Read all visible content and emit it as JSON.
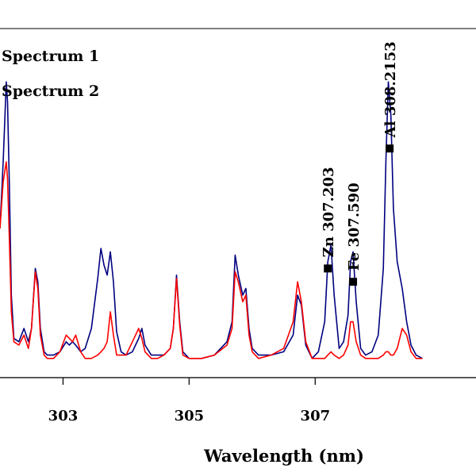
{
  "chart_data": {
    "type": "line",
    "title": "",
    "xlabel": "Wavelength (nm)",
    "ylabel": "",
    "xlim": [
      302.0,
      309.55
    ],
    "ylim": [
      0,
      1.0
    ],
    "xticks": [
      303,
      305,
      307
    ],
    "xtick_labels": [
      "303",
      "305",
      "307"
    ],
    "grid": false,
    "legend_position": "top-left",
    "legend": [
      {
        "name": "Spectrum 1",
        "color": "#000080"
      },
      {
        "name": "Spectrum 2",
        "color": "#ff0000"
      }
    ],
    "annotations": [
      {
        "label": "Zn 307.203",
        "x": 307.2,
        "y": 0.28
      },
      {
        "label": "Fe 307.590",
        "x": 307.6,
        "y": 0.24
      },
      {
        "label": "Al 308.2153",
        "x": 308.18,
        "y": 0.64
      }
    ],
    "series": [
      {
        "name": "Spectrum 1",
        "color": "#000080",
        "x": [
          302.0,
          302.05,
          302.1,
          302.12,
          302.15,
          302.18,
          302.22,
          302.3,
          302.38,
          302.45,
          302.5,
          302.56,
          302.6,
          302.64,
          302.7,
          302.75,
          302.85,
          302.95,
          303.05,
          303.1,
          303.15,
          303.2,
          303.28,
          303.35,
          303.45,
          303.55,
          303.6,
          303.65,
          303.7,
          303.75,
          303.8,
          303.85,
          303.92,
          304.0,
          304.1,
          304.2,
          304.25,
          304.3,
          304.4,
          304.5,
          304.6,
          304.7,
          304.75,
          304.8,
          304.85,
          304.9,
          305.0,
          305.2,
          305.4,
          305.6,
          305.68,
          305.73,
          305.78,
          305.85,
          305.9,
          305.95,
          306.0,
          306.1,
          306.3,
          306.5,
          306.65,
          306.72,
          306.78,
          306.85,
          306.95,
          307.05,
          307.15,
          307.2,
          307.25,
          307.3,
          307.38,
          307.45,
          307.52,
          307.56,
          307.6,
          307.65,
          307.72,
          307.8,
          307.9,
          308.0,
          308.08,
          308.12,
          308.16,
          308.2,
          308.24,
          308.3,
          308.38,
          308.45,
          308.52,
          308.6,
          308.7
        ],
        "y": [
          0.4,
          0.6,
          0.84,
          0.78,
          0.52,
          0.2,
          0.07,
          0.06,
          0.1,
          0.06,
          0.1,
          0.28,
          0.24,
          0.1,
          0.03,
          0.02,
          0.02,
          0.03,
          0.06,
          0.05,
          0.06,
          0.05,
          0.03,
          0.04,
          0.1,
          0.25,
          0.34,
          0.29,
          0.26,
          0.33,
          0.24,
          0.09,
          0.03,
          0.02,
          0.03,
          0.07,
          0.1,
          0.05,
          0.02,
          0.02,
          0.02,
          0.04,
          0.1,
          0.26,
          0.12,
          0.03,
          0.01,
          0.01,
          0.02,
          0.06,
          0.12,
          0.32,
          0.26,
          0.2,
          0.22,
          0.1,
          0.04,
          0.02,
          0.02,
          0.03,
          0.08,
          0.2,
          0.17,
          0.05,
          0.01,
          0.03,
          0.12,
          0.3,
          0.35,
          0.2,
          0.04,
          0.06,
          0.14,
          0.3,
          0.33,
          0.18,
          0.04,
          0.02,
          0.03,
          0.08,
          0.28,
          0.6,
          0.84,
          0.74,
          0.46,
          0.3,
          0.22,
          0.12,
          0.05,
          0.02,
          0.01
        ]
      },
      {
        "name": "Spectrum 2",
        "color": "#ff0000",
        "x": [
          302.0,
          302.05,
          302.1,
          302.12,
          302.15,
          302.18,
          302.22,
          302.3,
          302.38,
          302.45,
          302.5,
          302.56,
          302.6,
          302.64,
          302.7,
          302.75,
          302.85,
          302.95,
          303.05,
          303.1,
          303.15,
          303.2,
          303.28,
          303.35,
          303.45,
          303.55,
          303.6,
          303.65,
          303.7,
          303.75,
          303.8,
          303.85,
          303.92,
          304.0,
          304.1,
          304.2,
          304.25,
          304.3,
          304.4,
          304.5,
          304.6,
          304.7,
          304.75,
          304.8,
          304.85,
          304.9,
          305.0,
          305.2,
          305.4,
          305.6,
          305.68,
          305.73,
          305.78,
          305.85,
          305.9,
          305.95,
          306.0,
          306.1,
          306.3,
          306.5,
          306.65,
          306.72,
          306.78,
          306.85,
          306.95,
          307.05,
          307.15,
          307.2,
          307.25,
          307.3,
          307.38,
          307.45,
          307.52,
          307.56,
          307.6,
          307.65,
          307.72,
          307.8,
          307.9,
          308.0,
          308.08,
          308.12,
          308.16,
          308.2,
          308.24,
          308.3,
          308.38,
          308.45,
          308.52,
          308.6,
          308.7
        ],
        "y": [
          0.4,
          0.54,
          0.6,
          0.55,
          0.36,
          0.15,
          0.06,
          0.05,
          0.08,
          0.04,
          0.1,
          0.27,
          0.22,
          0.08,
          0.02,
          0.01,
          0.01,
          0.03,
          0.08,
          0.07,
          0.06,
          0.08,
          0.03,
          0.01,
          0.01,
          0.02,
          0.03,
          0.04,
          0.06,
          0.15,
          0.08,
          0.02,
          0.02,
          0.02,
          0.06,
          0.1,
          0.07,
          0.03,
          0.01,
          0.01,
          0.02,
          0.04,
          0.1,
          0.25,
          0.11,
          0.02,
          0.01,
          0.01,
          0.02,
          0.05,
          0.1,
          0.27,
          0.24,
          0.18,
          0.2,
          0.08,
          0.03,
          0.01,
          0.02,
          0.04,
          0.12,
          0.24,
          0.18,
          0.06,
          0.01,
          0.01,
          0.01,
          0.02,
          0.03,
          0.02,
          0.01,
          0.02,
          0.05,
          0.12,
          0.12,
          0.06,
          0.02,
          0.01,
          0.01,
          0.01,
          0.02,
          0.03,
          0.03,
          0.02,
          0.02,
          0.04,
          0.1,
          0.08,
          0.03,
          0.01,
          0.01
        ]
      }
    ]
  }
}
